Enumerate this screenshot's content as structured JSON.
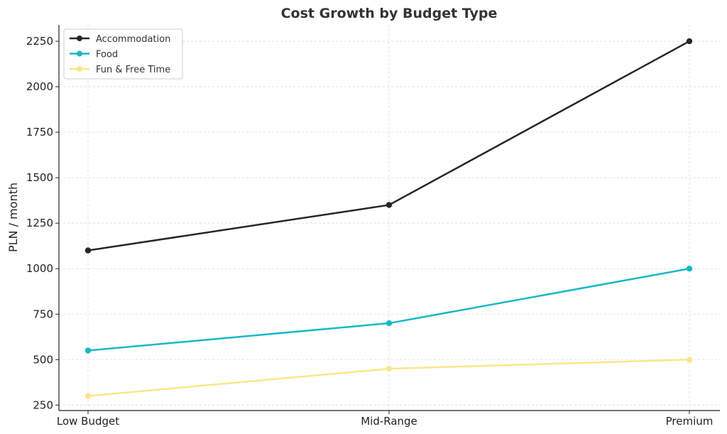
{
  "chart_data": {
    "type": "line",
    "title": "Cost Growth by Budget Type",
    "xlabel": "",
    "ylabel": "PLN / month",
    "categories": [
      "Low Budget",
      "Mid-Range",
      "Premium"
    ],
    "series": [
      {
        "name": "Accommodation",
        "values": [
          1100,
          1350,
          2250
        ],
        "color": "#262626"
      },
      {
        "name": "Food",
        "values": [
          550,
          700,
          1000
        ],
        "color": "#17b8c4"
      },
      {
        "name": "Fun & Free Time",
        "values": [
          300,
          450,
          500
        ],
        "color": "#fce68a"
      }
    ],
    "ylim": [
      220,
      2340
    ],
    "yticks": [
      250,
      500,
      750,
      1000,
      1250,
      1500,
      1750,
      2000,
      2250
    ],
    "grid": true,
    "legend_position": "top-left"
  }
}
